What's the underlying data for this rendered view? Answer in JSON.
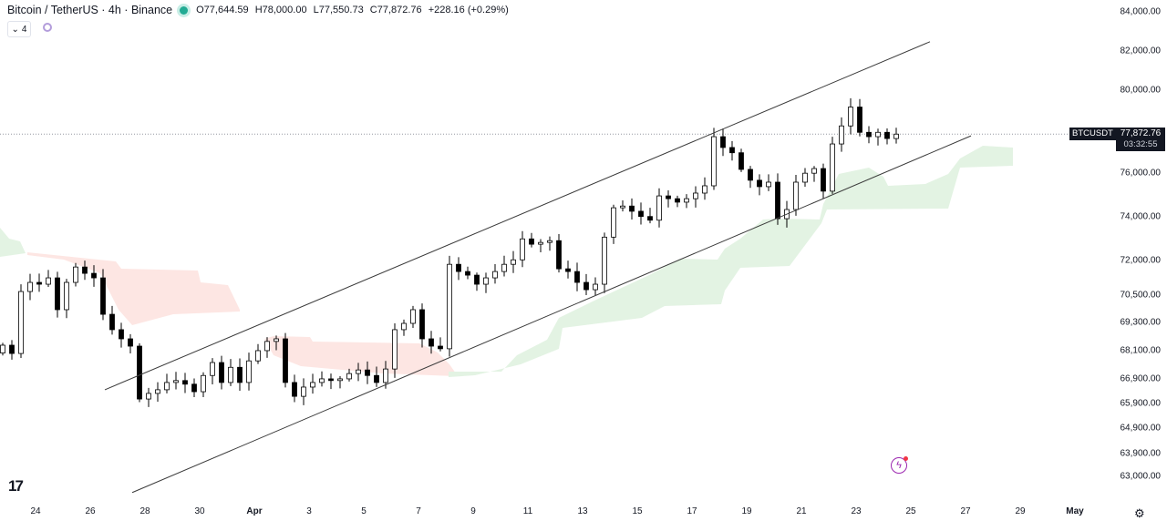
{
  "header": {
    "title": "Bitcoin / TetherUS · 4h · Binance",
    "open": "O77,644.59",
    "high": "H78,000.00",
    "low": "L77,550.73",
    "close": "C77,872.76",
    "change": "+228.16 (+0.29%)",
    "status_color": "#22ab94"
  },
  "indicators_toggle": {
    "label": "4",
    "icon": "chevron-down-icon"
  },
  "price_label": {
    "symbol": "BTCUSDT",
    "price": "77,872.76",
    "countdown": "03:32:55"
  },
  "chart_data": {
    "type": "candlestick",
    "symbol": "BTCUSDT",
    "scale": "log",
    "ylim": [
      62500,
      84500
    ],
    "y_ticks": [
      "84,000.00",
      "82,000.00",
      "80,000.00",
      "76,000.00",
      "74,000.00",
      "72,000.00",
      "70,500.00",
      "69,300.00",
      "68,100.00",
      "66,900.00",
      "65,900.00",
      "64,900.00",
      "63,900.00",
      "63,000.00"
    ],
    "x_ticks": [
      "24",
      "26",
      "28",
      "30",
      "Apr",
      "3",
      "5",
      "7",
      "9",
      "11",
      "13",
      "15",
      "17",
      "19",
      "21",
      "23",
      "25",
      "27",
      "29",
      "May"
    ],
    "first_open": 68000,
    "close": [
      68330,
      67980,
      70640,
      71040,
      70960,
      71240,
      69850,
      71040,
      71720,
      71440,
      71240,
      69650,
      68990,
      68600,
      68290,
      66090,
      66320,
      66470,
      66770,
      66850,
      66700,
      66390,
      67060,
      67600,
      66770,
      67400,
      66770,
      67670,
      68100,
      68490,
      68600,
      66770,
      66200,
      66580,
      66770,
      66920,
      66850,
      66920,
      67140,
      67290,
      67060,
      66770,
      67330,
      68990,
      69260,
      69850,
      68600,
      68290,
      68180,
      71840,
      71520,
      71360,
      70960,
      71240,
      71520,
      71840,
      72040,
      72980,
      72740,
      72820,
      72900,
      71640,
      71520,
      71040,
      70720,
      70960,
      73060,
      74400,
      74480,
      74240,
      74000,
      73830,
      74950,
      74820,
      74660,
      74820,
      75080,
      75420,
      77750,
      77230,
      76980,
      76190,
      75680,
      75380,
      75590,
      73900,
      74320,
      75590,
      76010,
      76230,
      75170,
      77400,
      78270,
      79190,
      77960,
      77750,
      77960,
      77660,
      77872.76
    ],
    "last_price": 77872.76,
    "trend_channel": {
      "upper": [
        {
          "bar": 11.2,
          "price": 66470
        },
        {
          "bar": 101.7,
          "price": 82460
        }
      ],
      "lower": [
        {
          "bar": 14.2,
          "price": 62370
        },
        {
          "bar": 106.2,
          "price": 77790
        }
      ]
    },
    "colors": {
      "up": "#ffffff",
      "down": "#000000",
      "bullish_cloud": "#e3f3e3",
      "bearish_cloud": "#fde6e3",
      "channel": "#3a3a3a"
    }
  }
}
